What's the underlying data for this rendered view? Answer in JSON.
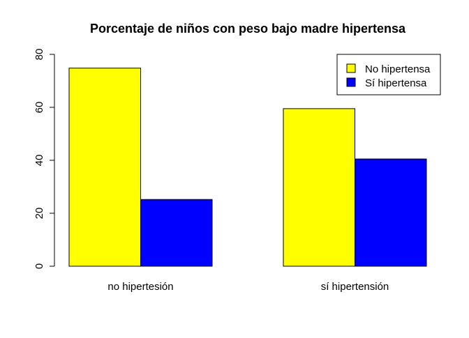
{
  "chart_data": {
    "type": "bar",
    "title": "Porcentaje de niños con peso bajo madre hipertensa",
    "xlabel": "",
    "ylabel": "",
    "categories": [
      "no hipertesión",
      "sí hipertensión"
    ],
    "series": [
      {
        "name": "No hipertensa",
        "color": "#ffff00",
        "values": [
          74.8,
          59.5
        ]
      },
      {
        "name": "Sí hipertensa",
        "color": "#0000ff",
        "values": [
          25.2,
          40.5
        ]
      }
    ],
    "ylim": [
      0,
      80
    ],
    "yticks": [
      0,
      20,
      40,
      60,
      80
    ],
    "grid": false,
    "legend_position": "top-right"
  }
}
